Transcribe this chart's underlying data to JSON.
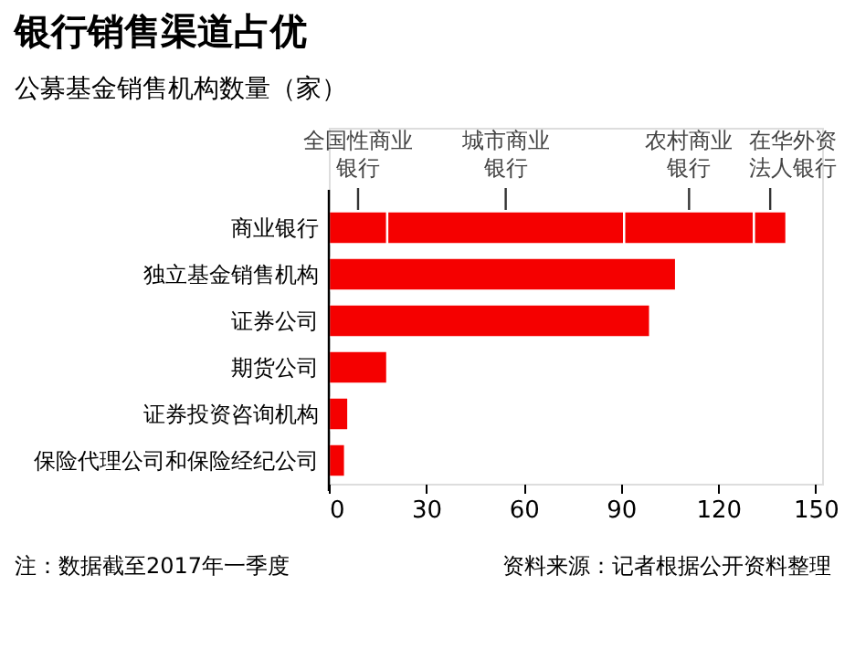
{
  "chart_data": {
    "type": "bar",
    "orientation": "horizontal",
    "stacked": true,
    "title": "银行销售渠道占优",
    "subtitle": "公募基金销售机构数量（家）",
    "categories": [
      "商业银行",
      "独立基金销售机构",
      "证券公司",
      "期货公司",
      "证券投资咨询机构",
      "保险代理公司和保险经纪公司"
    ],
    "series": [
      {
        "color": "#f50000",
        "values": [
          18,
          107,
          99,
          18,
          6,
          5
        ]
      },
      {
        "color": "#f50000",
        "values": [
          73,
          null,
          null,
          null,
          null,
          null
        ]
      },
      {
        "color": "#f50000",
        "values": [
          40,
          null,
          null,
          null,
          null,
          null
        ]
      },
      {
        "color": "#f50000",
        "values": [
          10,
          null,
          null,
          null,
          null,
          null
        ]
      }
    ],
    "xlim": [
      0,
      152
    ],
    "xticks": [
      0,
      30,
      60,
      90,
      120,
      150
    ],
    "grid": false,
    "legend": false,
    "annotations": [
      "全国性商业银行",
      "城市商业银行",
      "农村商业银行",
      "在华外资法人银行",
      "注：数据截至2017年一季度",
      "资料来源：记者根据公开资料整理"
    ]
  }
}
